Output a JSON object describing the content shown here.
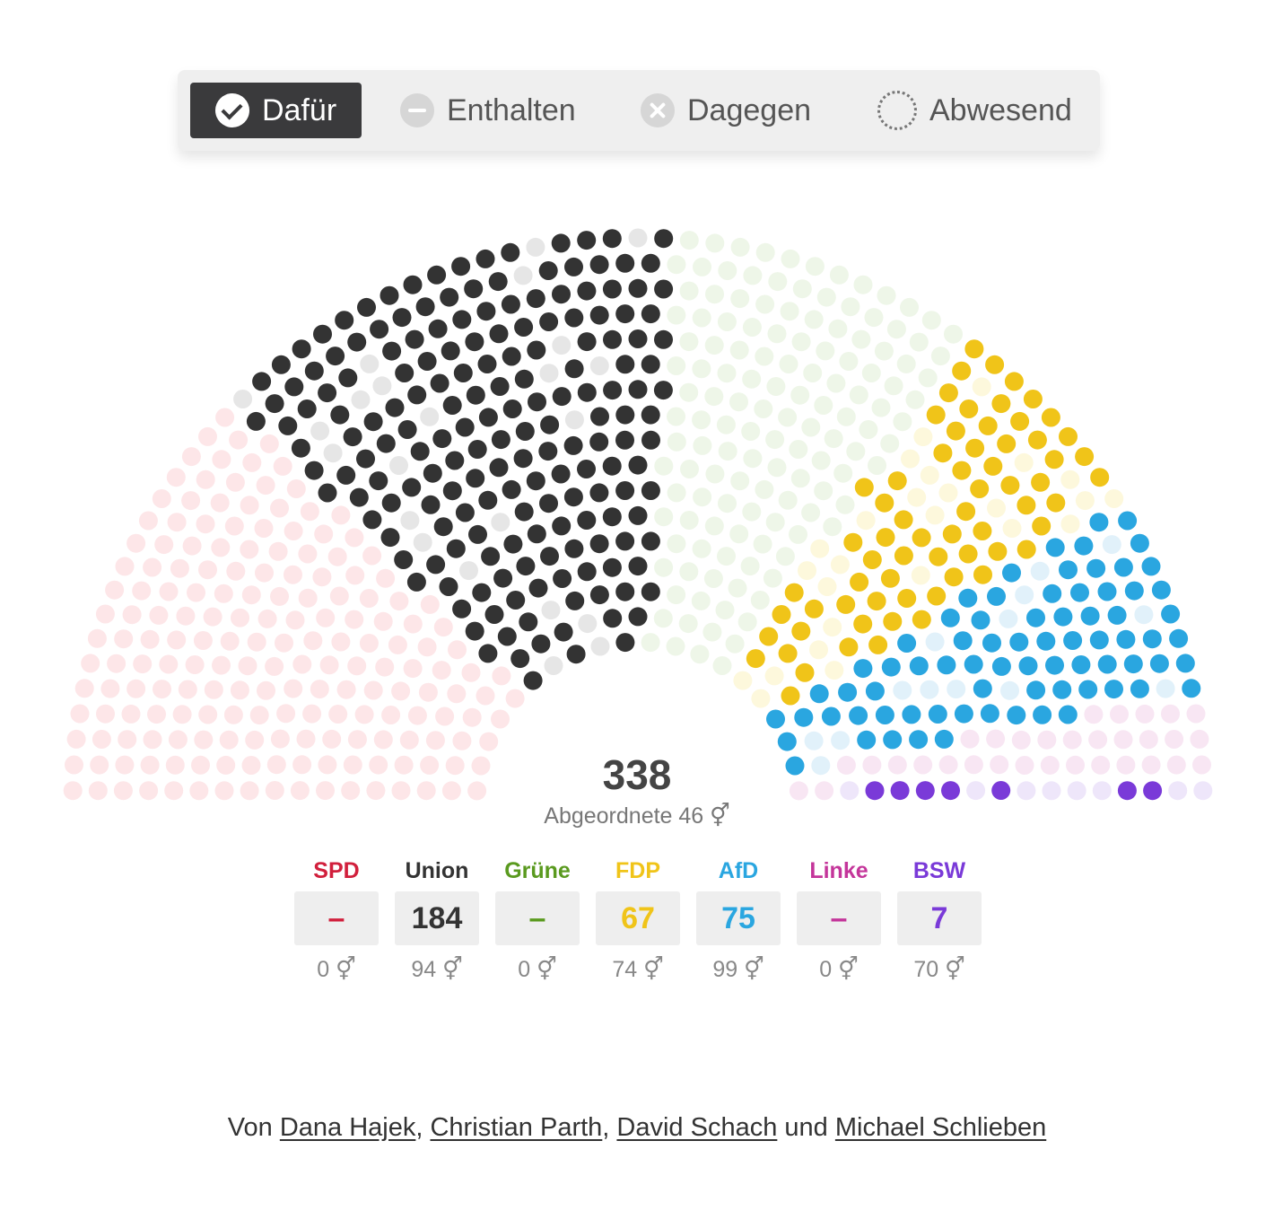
{
  "tabs": [
    {
      "label": "Dafür",
      "icon": "check-circle-icon",
      "active": true
    },
    {
      "label": "Enthalten",
      "icon": "minus-circle-icon",
      "active": false
    },
    {
      "label": "Dagegen",
      "icon": "x-circle-icon",
      "active": false
    },
    {
      "label": "Abwesend",
      "icon": "dotted-circle-icon",
      "active": false
    }
  ],
  "chart_data": {
    "type": "hemicycle",
    "total_value": "338",
    "total_label": "Abgeordnete 46 ⚥",
    "parties": [
      {
        "name": "SPD",
        "value": "–",
        "women": "0 ⚥",
        "color": "#d11f3c",
        "faint": "#fde6e8"
      },
      {
        "name": "Union",
        "value": "184",
        "women": "94 ⚥",
        "color": "#333333",
        "faint": "#e6e6e6"
      },
      {
        "name": "Grüne",
        "value": "–",
        "women": "0 ⚥",
        "color": "#5a9a1f",
        "faint": "#eef6e8"
      },
      {
        "name": "FDP",
        "value": "67",
        "women": "74 ⚥",
        "color": "#f0c419",
        "faint": "#fdf8dc"
      },
      {
        "name": "AfD",
        "value": "75",
        "women": "99 ⚥",
        "color": "#2aa6e0",
        "faint": "#e1f1fa"
      },
      {
        "name": "Linke",
        "value": "–",
        "women": "0 ⚥",
        "color": "#c4359a",
        "faint": "#f8e6f3"
      },
      {
        "name": "BSW",
        "value": "7",
        "women": "70 ⚥",
        "color": "#7a3ad8",
        "faint": "#eee6fa"
      }
    ],
    "other_color": "#9a9a9a",
    "other_faint": "#eeeeee"
  },
  "byline": {
    "prefix": "Von",
    "authors": [
      "Dana Hajek",
      "Christian Parth",
      "David Schach",
      "Michael Schlieben"
    ],
    "sep1": ",",
    "sep2": ",",
    "conj": "und"
  }
}
